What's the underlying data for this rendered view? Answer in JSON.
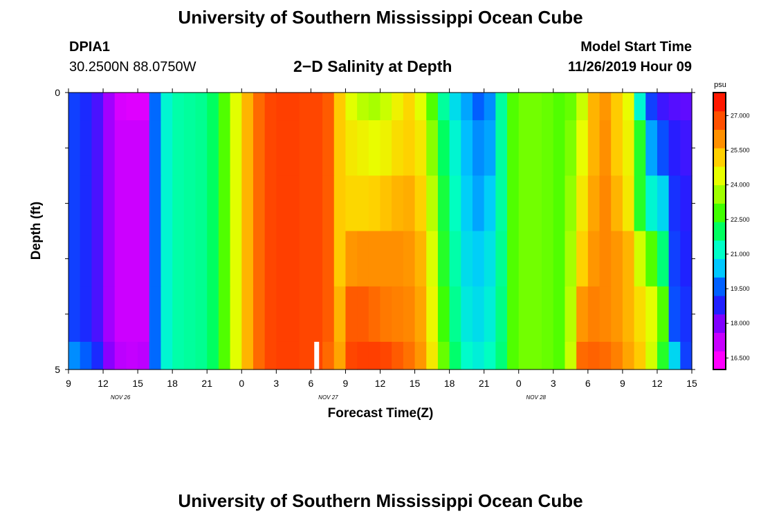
{
  "header": {
    "title": "University of Southern Mississippi Ocean Cube",
    "station_id": "DPIA1",
    "coordinates": "30.2500N 88.0750W",
    "plot_subtitle": "2−D Salinity at Depth",
    "model_start_label": "Model Start Time",
    "model_start_value": "11/26/2019 Hour 09"
  },
  "footer": {
    "title": "University of Southern Mississippi Ocean Cube"
  },
  "chart_data": {
    "type": "heatmap",
    "title": "2−D Salinity at Depth",
    "xlabel": "Forecast Time(Z)",
    "ylabel": "Depth (ft)",
    "x_tick_labels": [
      "9",
      "12",
      "15",
      "18",
      "21",
      "0",
      "3",
      "6",
      "9",
      "12",
      "15",
      "18",
      "21",
      "0",
      "3",
      "6",
      "9",
      "12",
      "15"
    ],
    "day_labels": [
      {
        "text": "NOV  26",
        "tick_index": 1.5
      },
      {
        "text": "NOV  27",
        "tick_index": 7.5
      },
      {
        "text": "NOV  28",
        "tick_index": 13.5
      }
    ],
    "y_tick_labels": [
      "0",
      "5"
    ],
    "y_range_ft": [
      0,
      5
    ],
    "x_range_hours_from_start": [
      0,
      54
    ],
    "colorbar": {
      "unit": "psu",
      "tick_labels": [
        "16.500",
        "18.000",
        "19.500",
        "21.000",
        "22.500",
        "24.000",
        "25.500",
        "27.000"
      ],
      "range": [
        16.0,
        28.0
      ],
      "colors": [
        "#ff00ff",
        "#c800ff",
        "#8000ff",
        "#2020ff",
        "#0060ff",
        "#00c8ff",
        "#00ffc8",
        "#00ff60",
        "#40ff00",
        "#a0ff00",
        "#e8ff00",
        "#ffd000",
        "#ff9000",
        "#ff5000",
        "#ff1800"
      ]
    },
    "time_columns_hours": [
      0,
      1,
      2,
      3,
      4,
      5,
      6,
      7,
      8,
      9,
      10,
      11,
      12,
      13,
      14,
      15,
      16,
      17,
      18,
      19,
      20,
      21,
      22,
      23,
      24,
      25,
      26,
      27,
      28,
      29,
      30,
      31,
      32,
      33,
      34,
      35,
      36,
      37,
      38,
      39,
      40,
      41,
      42,
      43,
      44,
      45,
      46,
      47,
      48,
      49,
      50,
      51,
      52,
      53
    ],
    "depth_layers_ft": [
      "0-0.5",
      "0.5-1.5",
      "1.5-2.5",
      "2.5-3.5",
      "3.5-4.5",
      "4.5-5"
    ],
    "salinity_psu": [
      [
        19.0,
        18.7,
        18.2,
        17.3,
        16.6,
        16.5,
        16.5,
        19.5,
        21.0,
        21.4,
        21.5,
        21.6,
        22.0,
        23.0,
        24.5,
        25.8,
        26.8,
        27.3,
        27.4,
        27.4,
        27.3,
        27.3,
        27.0,
        25.5,
        24.5,
        24.0,
        23.8,
        24.2,
        24.8,
        25.3,
        24.5,
        23.0,
        21.5,
        20.6,
        20.0,
        19.4,
        19.8,
        21.5,
        23.0,
        23.3,
        23.3,
        23.2,
        23.0,
        23.2,
        24.2,
        25.8,
        26.2,
        25.5,
        24.6,
        21.0,
        19.0,
        18.3,
        18.1,
        18.0
      ],
      [
        19.0,
        18.7,
        18.2,
        17.3,
        16.8,
        16.8,
        16.8,
        19.5,
        21.0,
        21.4,
        21.5,
        21.6,
        22.0,
        23.0,
        24.5,
        25.8,
        26.8,
        27.3,
        27.4,
        27.4,
        27.3,
        27.3,
        27.0,
        25.5,
        25.0,
        24.8,
        24.6,
        24.8,
        25.2,
        25.4,
        25.0,
        23.5,
        22.0,
        21.0,
        20.2,
        19.8,
        20.0,
        21.5,
        23.0,
        23.3,
        23.3,
        23.2,
        23.0,
        23.4,
        24.6,
        25.8,
        26.3,
        25.5,
        24.8,
        22.5,
        20.0,
        19.2,
        18.5,
        18.3
      ],
      [
        19.0,
        18.7,
        18.2,
        17.3,
        16.8,
        16.8,
        16.8,
        19.5,
        21.0,
        21.4,
        21.5,
        21.6,
        22.0,
        23.0,
        24.5,
        25.8,
        26.8,
        27.3,
        27.4,
        27.4,
        27.3,
        27.3,
        27.0,
        25.5,
        25.3,
        25.3,
        25.4,
        25.6,
        25.8,
        25.9,
        25.4,
        24.0,
        22.3,
        21.2,
        20.4,
        20.0,
        20.4,
        21.5,
        23.0,
        23.3,
        23.3,
        23.2,
        23.0,
        23.6,
        25.0,
        26.0,
        26.4,
        25.8,
        25.0,
        22.5,
        21.0,
        20.5,
        18.8,
        18.5
      ],
      [
        19.0,
        18.7,
        18.2,
        17.3,
        16.8,
        16.8,
        16.8,
        19.5,
        21.0,
        21.4,
        21.5,
        21.6,
        22.0,
        23.0,
        24.5,
        25.8,
        26.8,
        27.3,
        27.4,
        27.4,
        27.3,
        27.3,
        27.0,
        25.5,
        26.2,
        26.3,
        26.3,
        26.3,
        26.3,
        26.2,
        25.8,
        24.4,
        22.5,
        21.4,
        20.6,
        20.4,
        20.7,
        21.6,
        23.0,
        23.3,
        23.3,
        23.2,
        23.0,
        23.8,
        25.4,
        26.2,
        26.4,
        26.2,
        25.8,
        24.3,
        23.0,
        21.8,
        19.0,
        18.6
      ],
      [
        19.0,
        18.7,
        18.2,
        17.3,
        16.8,
        16.8,
        16.8,
        19.5,
        21.0,
        21.4,
        21.5,
        21.6,
        22.0,
        23.0,
        24.5,
        25.8,
        26.8,
        27.3,
        27.4,
        27.4,
        27.3,
        27.3,
        27.0,
        25.8,
        27.0,
        27.0,
        26.8,
        26.6,
        26.5,
        26.4,
        26.0,
        24.7,
        22.8,
        21.6,
        20.8,
        20.6,
        20.9,
        21.7,
        23.0,
        23.3,
        23.3,
        23.2,
        23.0,
        24.0,
        26.2,
        26.5,
        26.4,
        26.2,
        25.8,
        25.2,
        24.5,
        23.0,
        19.2,
        18.8
      ],
      [
        19.8,
        19.4,
        18.7,
        17.6,
        17.0,
        16.9,
        17.0,
        19.5,
        21.0,
        21.4,
        21.5,
        21.6,
        22.0,
        23.0,
        24.5,
        25.8,
        26.8,
        27.3,
        27.4,
        27.4,
        27.3,
        27.3,
        26.8,
        26.0,
        27.3,
        27.4,
        27.4,
        27.3,
        27.0,
        26.7,
        26.2,
        25.0,
        23.2,
        21.9,
        21.1,
        20.9,
        21.2,
        21.8,
        23.0,
        23.3,
        23.3,
        23.2,
        23.0,
        24.2,
        26.8,
        26.9,
        26.8,
        26.5,
        26.0,
        25.5,
        24.3,
        22.5,
        20.5,
        19.0
      ]
    ],
    "missing_cell": {
      "hour": 21.5,
      "depth_layer": 5
    }
  }
}
